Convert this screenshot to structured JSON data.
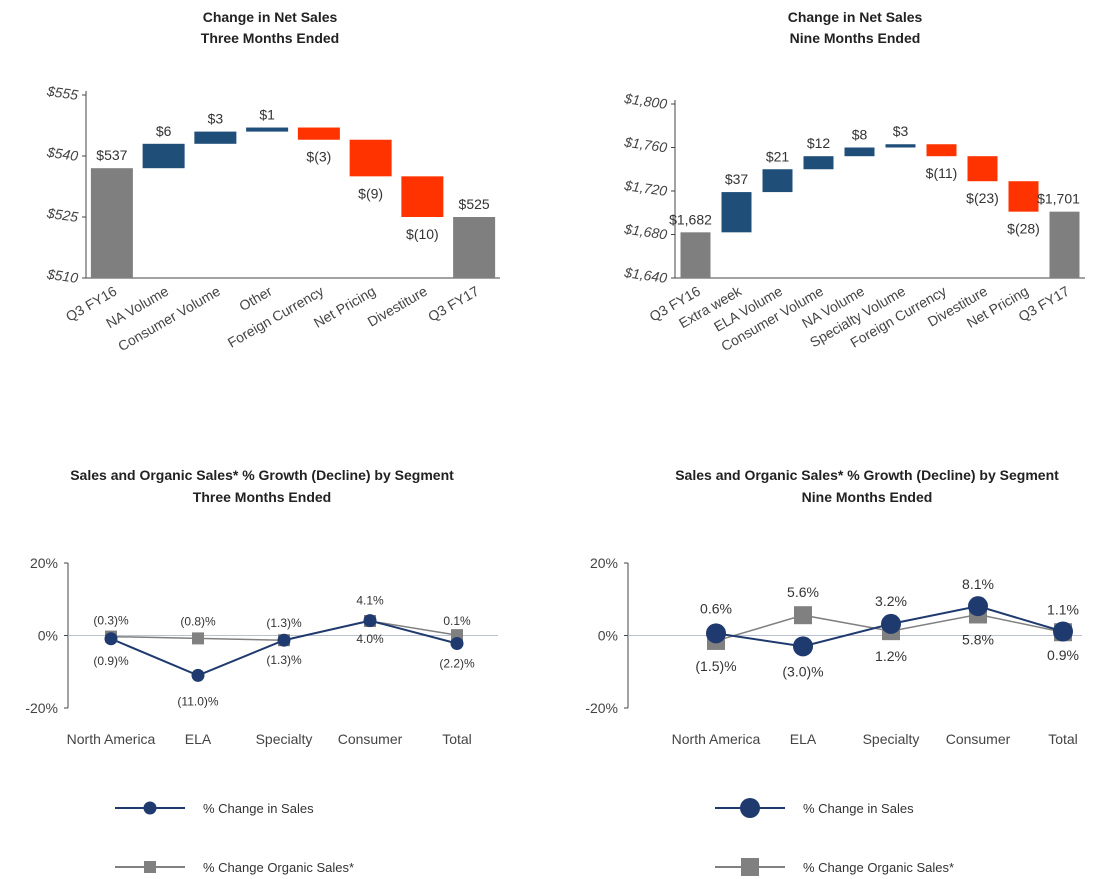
{
  "colors": {
    "total": "#7f7f7f",
    "increase": "#1f4e79",
    "decrease": "#ff3300",
    "sales": "#1f3a6e",
    "organic": "#808080",
    "axis": "#444444",
    "zero": "#b9c0d0"
  },
  "chart_data": [
    {
      "type": "waterfall",
      "title": "Change in Net Sales",
      "subtitle": "Three Months Ended",
      "ylim": [
        510,
        555
      ],
      "yticks": [
        510,
        525,
        540,
        555
      ],
      "ytick_labels": [
        "$510",
        "$525",
        "$540",
        "$555"
      ],
      "bars": [
        {
          "category": "Q3 FY16",
          "kind": "total",
          "value": 537,
          "label": "$537"
        },
        {
          "category": "NA Volume",
          "kind": "delta",
          "value": 6,
          "label": "$6"
        },
        {
          "category": "Consumer Volume",
          "kind": "delta",
          "value": 3,
          "label": "$3"
        },
        {
          "category": "Other",
          "kind": "delta",
          "value": 1,
          "label": "$1"
        },
        {
          "category": "Foreign Currency",
          "kind": "delta",
          "value": -3,
          "label": "$(3)"
        },
        {
          "category": "Net Pricing",
          "kind": "delta",
          "value": -9,
          "label": "$(9)"
        },
        {
          "category": "Divestiture",
          "kind": "delta",
          "value": -10,
          "label": "$(10)"
        },
        {
          "category": "Q3 FY17",
          "kind": "total",
          "value": 525,
          "label": "$525"
        }
      ]
    },
    {
      "type": "waterfall",
      "title": "Change in Net Sales",
      "subtitle": "Nine Months Ended",
      "ylim": [
        1640,
        1800
      ],
      "yticks": [
        1640,
        1680,
        1720,
        1760,
        1800
      ],
      "ytick_labels": [
        "$1,640",
        "$1,680",
        "$1,720",
        "$1,760",
        "$1,800"
      ],
      "bars": [
        {
          "category": "Q3 FY16",
          "kind": "total",
          "value": 1682,
          "label": "$1,682"
        },
        {
          "category": "Extra week",
          "kind": "delta",
          "value": 37,
          "label": "$37"
        },
        {
          "category": "ELA Volume",
          "kind": "delta",
          "value": 21,
          "label": "$21"
        },
        {
          "category": "Consumer Volume",
          "kind": "delta",
          "value": 12,
          "label": "$12"
        },
        {
          "category": "NA Volume",
          "kind": "delta",
          "value": 8,
          "label": "$8"
        },
        {
          "category": "Specialty Volume",
          "kind": "delta",
          "value": 3,
          "label": "$3"
        },
        {
          "category": "Foreign Currency",
          "kind": "delta",
          "value": -11,
          "label": "$(11)"
        },
        {
          "category": "Divestiture",
          "kind": "delta",
          "value": -23,
          "label": "$(23)"
        },
        {
          "category": "Net Pricing",
          "kind": "delta",
          "value": -28,
          "label": "$(28)"
        },
        {
          "category": "Q3 FY17",
          "kind": "total",
          "value": 1701,
          "label": "$1,701"
        }
      ]
    },
    {
      "type": "line",
      "title": "Sales and Organic Sales* % Growth (Decline) by Segment",
      "subtitle": "Three Months Ended",
      "categories": [
        "North America",
        "ELA",
        "Specialty",
        "Consumer",
        "Total"
      ],
      "ylim": [
        -20,
        20
      ],
      "yticks": [
        -20,
        0,
        20
      ],
      "ytick_labels": [
        "-20%",
        "0%",
        "20%"
      ],
      "series": [
        {
          "name": "% Change in Sales",
          "values": [
            -0.9,
            -11.0,
            -1.3,
            4.1,
            -2.2
          ],
          "labels": [
            "(0.9)%",
            "(11.0)%",
            "(1.3)%",
            "4.1%",
            "(2.2)%"
          ]
        },
        {
          "name": "% Change Organic Sales*",
          "values": [
            -0.3,
            -0.8,
            -1.3,
            4.0,
            0.1
          ],
          "labels": [
            "(0.3)%",
            "(0.8)%",
            "(1.3)%",
            "4.0%",
            "0.1%"
          ]
        }
      ]
    },
    {
      "type": "line",
      "title": "Sales and Organic Sales* % Growth (Decline) by Segment",
      "subtitle": "Nine Months Ended",
      "categories": [
        "North America",
        "ELA",
        "Specialty",
        "Consumer",
        "Total"
      ],
      "ylim": [
        -20,
        20
      ],
      "yticks": [
        -20,
        0,
        20
      ],
      "ytick_labels": [
        "-20%",
        "0%",
        "20%"
      ],
      "series": [
        {
          "name": "% Change in Sales",
          "values": [
            0.6,
            -3.0,
            3.2,
            8.1,
            1.1
          ],
          "labels": [
            "0.6%",
            "(3.0)%",
            "3.2%",
            "8.1%",
            "1.1%"
          ]
        },
        {
          "name": "% Change Organic Sales*",
          "values": [
            -1.5,
            5.6,
            1.2,
            5.8,
            0.9
          ],
          "labels": [
            "(1.5)%",
            "5.6%",
            "1.2%",
            "5.8%",
            "0.9%"
          ]
        }
      ]
    }
  ]
}
